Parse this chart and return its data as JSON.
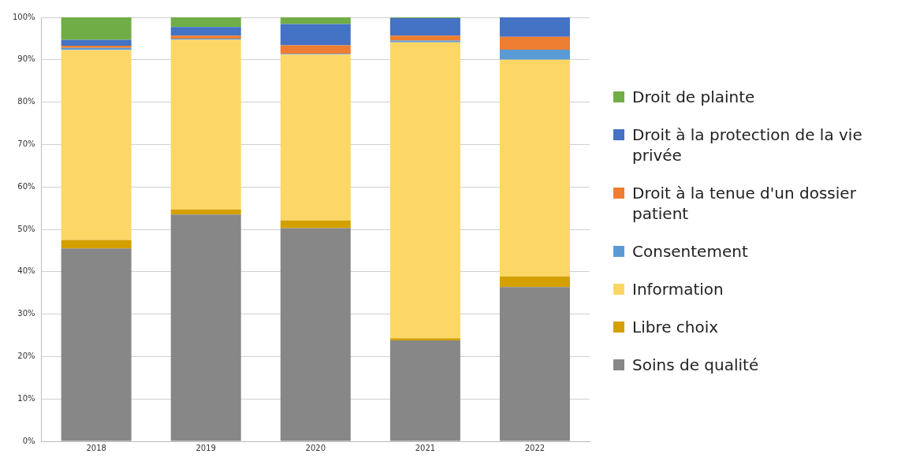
{
  "chart_data": {
    "type": "bar",
    "stacked": true,
    "categories": [
      "2018",
      "2019",
      "2020",
      "2021",
      "2022"
    ],
    "series": [
      {
        "name": "Soins de qualité",
        "color": "#878787",
        "values": [
          45.5,
          53.5,
          50.3,
          23.8,
          36.4
        ]
      },
      {
        "name": "Libre choix",
        "color": "#d4a000",
        "values": [
          2,
          1.2,
          1.8,
          0.5,
          2.5
        ]
      },
      {
        "name": "Information",
        "color": "#fdd766",
        "values": [
          44.8,
          40,
          39.1,
          69.8,
          51.1
        ]
      },
      {
        "name": "Consentement",
        "color": "#5b9bd5",
        "values": [
          0.5,
          0.3,
          0.2,
          0.4,
          2.4
        ]
      },
      {
        "name": "Droit à la tenue d'un dossier patient",
        "color": "#ed7d31",
        "values": [
          0.5,
          0.7,
          2,
          1.2,
          3
        ]
      },
      {
        "name": "Droit à la protection de la vie privée",
        "color": "#4472c4",
        "values": [
          1.4,
          2,
          5,
          4.1,
          4.6
        ]
      },
      {
        "name": "Droit de plainte",
        "color": "#70ad47",
        "values": [
          5.3,
          2.3,
          1.6,
          0.2,
          0
        ]
      }
    ],
    "ylim": [
      0,
      100
    ],
    "yticks": [
      {
        "value": 0,
        "label": "0%"
      },
      {
        "value": 10,
        "label": "10%"
      },
      {
        "value": 20,
        "label": "20%"
      },
      {
        "value": 30,
        "label": "30%"
      },
      {
        "value": 40,
        "label": "40%"
      },
      {
        "value": 50,
        "label": "50%"
      },
      {
        "value": 60,
        "label": "60%"
      },
      {
        "value": 70,
        "label": "70%"
      },
      {
        "value": 80,
        "label": "80%"
      },
      {
        "value": 90,
        "label": "90%"
      },
      {
        "value": 100,
        "label": "100%"
      }
    ],
    "grid": "y",
    "legend": "right"
  }
}
